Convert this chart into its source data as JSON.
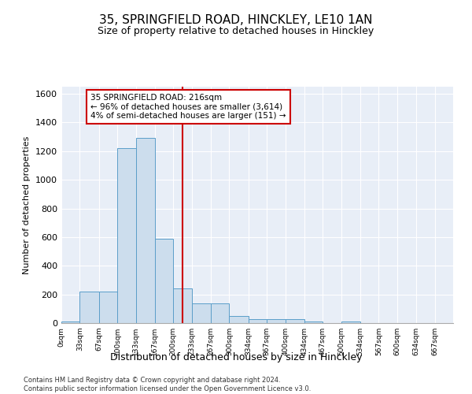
{
  "title": "35, SPRINGFIELD ROAD, HINCKLEY, LE10 1AN",
  "subtitle": "Size of property relative to detached houses in Hinckley",
  "xlabel": "Distribution of detached houses by size in Hinckley",
  "ylabel": "Number of detached properties",
  "bar_color": "#ccdded",
  "bar_edge_color": "#5b9ec9",
  "bin_edges": [
    0,
    33,
    67,
    100,
    133,
    167,
    200,
    233,
    267,
    300,
    334,
    367,
    400,
    434,
    467,
    500,
    534,
    567,
    600,
    634,
    667,
    700
  ],
  "bar_heights": [
    10,
    220,
    220,
    1220,
    1295,
    590,
    240,
    135,
    135,
    50,
    30,
    25,
    25,
    10,
    0,
    10,
    0,
    0,
    0,
    0,
    0
  ],
  "vline_x": 216,
  "vline_color": "#cc0000",
  "annotation_text": "35 SPRINGFIELD ROAD: 216sqm\n← 96% of detached houses are smaller (3,614)\n4% of semi-detached houses are larger (151) →",
  "annotation_box_color": "#ffffff",
  "annotation_box_edge": "#cc0000",
  "ylim": [
    0,
    1650
  ],
  "yticks": [
    0,
    200,
    400,
    600,
    800,
    1000,
    1200,
    1400,
    1600
  ],
  "background_color": "#e8eef7",
  "footer_line1": "Contains HM Land Registry data © Crown copyright and database right 2024.",
  "footer_line2": "Contains public sector information licensed under the Open Government Licence v3.0.",
  "tick_labels": [
    "0sqm",
    "33sqm",
    "67sqm",
    "100sqm",
    "133sqm",
    "167sqm",
    "200sqm",
    "233sqm",
    "267sqm",
    "300sqm",
    "334sqm",
    "367sqm",
    "400sqm",
    "434sqm",
    "467sqm",
    "500sqm",
    "534sqm",
    "567sqm",
    "600sqm",
    "634sqm",
    "667sqm"
  ]
}
